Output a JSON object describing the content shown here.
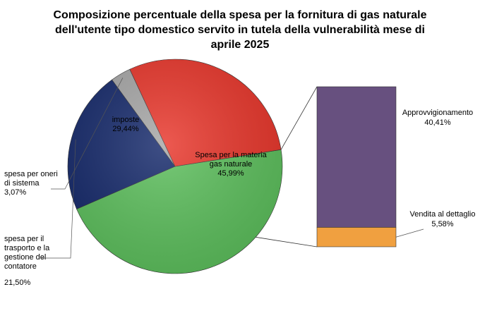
{
  "chart_data": {
    "type": "pie",
    "title_lines": [
      "Composizione percentuale della spesa per la fornitura di gas naturale",
      "dell'utente tipo domestico servito in tutela della vulnerabilità mese di",
      "aprile 2025"
    ],
    "slices": [
      {
        "label_lines": [
          "Spesa per la materia",
          "gas naturale"
        ],
        "value_label": "45,99%",
        "value": 45.99,
        "color": "#5cbf5c"
      },
      {
        "label_lines": [
          "spesa per il",
          "trasporto e la",
          "gestione del",
          "contatore"
        ],
        "value_label": "21,50%",
        "value": 21.5,
        "color": "#14286a"
      },
      {
        "label_lines": [
          "spesa per oneri",
          "di sistema"
        ],
        "value_label": "3,07%",
        "value": 3.07,
        "color": "#a6a6a6"
      },
      {
        "label_lines": [
          "imposte"
        ],
        "value_label": "29,44%",
        "value": 29.44,
        "color": "#e8352a"
      }
    ],
    "breakdown": {
      "of_slice": "Spesa per la materia gas naturale",
      "segments": [
        {
          "label": "Approvvigionamento",
          "value_label": "40,41%",
          "value": 40.41,
          "color": "#67507f"
        },
        {
          "label": "Vendita al dettaglio",
          "value_label": "5,58%",
          "value": 5.58,
          "color": "#f0a040"
        }
      ]
    }
  }
}
